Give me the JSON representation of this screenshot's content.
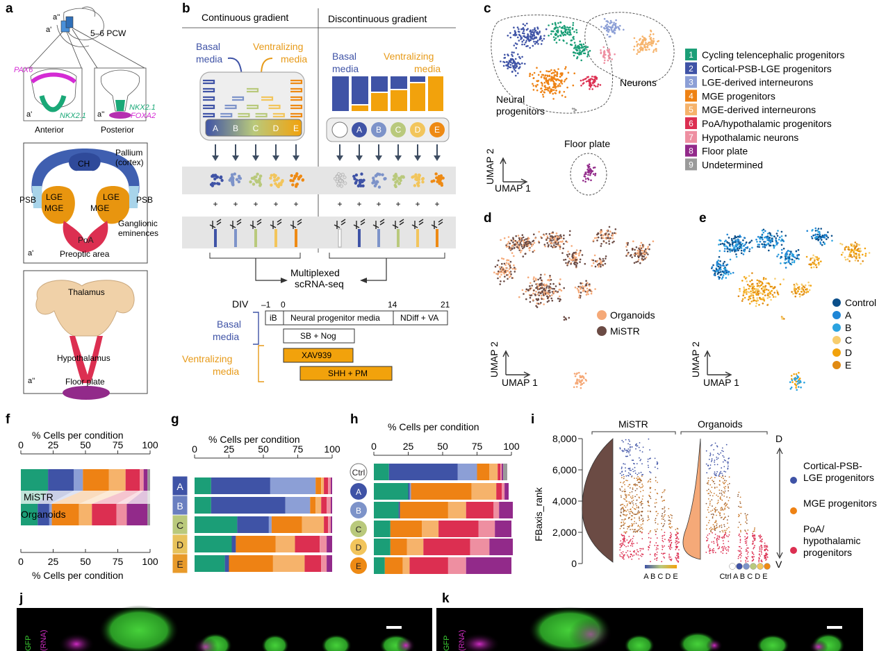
{
  "panels": {
    "a": {
      "label": "a",
      "top": {
        "stage": "5–6 PCW",
        "cut1": "a'",
        "cut2": "a''",
        "markers": [
          "PAX6",
          "NKX2.1",
          "NKX2.1",
          "FOXA2"
        ],
        "anterior": "Anterior",
        "posterior": "Posterior",
        "sub1": "a'",
        "sub2": "a''"
      },
      "mid": {
        "CH": "CH",
        "pallium": "Pallium",
        "cortex": "(cortex)",
        "LGE": "LGE",
        "MGE": "MGE",
        "PSB": "PSB",
        "PoA": "PoA",
        "ganglionic": "Ganglionic",
        "eminences": "eminences",
        "preoptic": "Preoptic area",
        "sub": "a'"
      },
      "bot": {
        "thalamus": "Thalamus",
        "hypothalamus": "Hypothalamus",
        "floorplate": "Floor plate",
        "sub": "a''"
      }
    },
    "b": {
      "label": "b",
      "continuous": "Continuous gradient",
      "discontinuous": "Discontinuous gradient",
      "basal": [
        "Basal",
        "media"
      ],
      "ventral": [
        "Ventralizing",
        "media"
      ],
      "wells": [
        "A",
        "B",
        "C",
        "D",
        "E"
      ],
      "plus": "+",
      "multiplexed": [
        "Multiplexed",
        "scRNA-seq"
      ],
      "timeline": {
        "div": "DIV",
        "ticks": [
          "–1",
          "0",
          "14",
          "21"
        ],
        "segments": [
          "iB",
          "Neural progenitor media",
          "NDiff + VA"
        ],
        "basal": [
          "Basal",
          "media"
        ],
        "ventral": [
          "Ventralizing",
          "media"
        ],
        "bars": [
          "SB + Nog",
          "XAV939",
          "SHH + PM"
        ]
      }
    },
    "c": {
      "label": "c",
      "neurons": "Neurons",
      "neural": [
        "Neural",
        "progenitors"
      ],
      "floorplate": "Floor plate",
      "umap1": "UMAP 1",
      "umap2": "UMAP 2",
      "legend": [
        {
          "n": "1",
          "name": "Cycling telencephalic progenitors",
          "color": "#1b9e77"
        },
        {
          "n": "2",
          "name": "Cortical-PSB-LGE progenitors",
          "color": "#3f53a6"
        },
        {
          "n": "3",
          "name": "LGE-derived interneurons",
          "color": "#8c9fd6"
        },
        {
          "n": "4",
          "name": "MGE progenitors",
          "color": "#ee8214"
        },
        {
          "n": "5",
          "name": "MGE-derived interneurons",
          "color": "#f6b36b"
        },
        {
          "n": "6",
          "name": "PoA/hypothalamic progenitors",
          "color": "#dc2f51"
        },
        {
          "n": "7",
          "name": "Hypothalamic neurons",
          "color": "#ee8fa1"
        },
        {
          "n": "8",
          "name": "Floor plate",
          "color": "#922a8a"
        },
        {
          "n": "9",
          "name": "Undetermined",
          "color": "#9a9a9a"
        }
      ]
    },
    "d": {
      "label": "d",
      "legend": [
        {
          "name": "Organoids",
          "color": "#f5a978"
        },
        {
          "name": "MiSTR",
          "color": "#6b4b44"
        }
      ],
      "umap1": "UMAP 1",
      "umap2": "UMAP 2"
    },
    "e": {
      "label": "e",
      "legend": [
        {
          "name": "Control",
          "color": "#0b4f8a"
        },
        {
          "name": "A",
          "color": "#1f86d6"
        },
        {
          "name": "B",
          "color": "#2ba3e0"
        },
        {
          "name": "C",
          "color": "#f7cd6e"
        },
        {
          "name": "D",
          "color": "#f2a20c"
        },
        {
          "name": "E",
          "color": "#e08a12"
        }
      ],
      "umap1": "UMAP 1",
      "umap2": "UMAP 2"
    },
    "f": {
      "label": "f",
      "title": "% Cells per condition",
      "bottom_title": "% Cells per condition",
      "rows": [
        "MiSTR",
        "Organoids"
      ]
    },
    "g": {
      "label": "g",
      "title": "% Cells per condition",
      "rows": [
        "A",
        "B",
        "C",
        "D",
        "E"
      ]
    },
    "h": {
      "label": "h",
      "title": "% Cells per condition",
      "rows": [
        "Ctrl",
        "A",
        "B",
        "C",
        "D",
        "E"
      ]
    },
    "i": {
      "label": "i",
      "groups": [
        "MiSTR",
        "Organoids"
      ],
      "ylabel": "FBaxis_rank",
      "d": "D",
      "v": "V",
      "xcats1": "A B C D E",
      "xcats2": "Ctrl A B C D E",
      "legend": [
        {
          "lines": [
            "Cortical-PSB-",
            "LGE progenitors"
          ],
          "color": "#3f53a6"
        },
        {
          "lines": [
            "MGE progenitors"
          ],
          "color": "#ee8214"
        },
        {
          "lines": [
            "PoA/",
            "hypothalamic",
            "progenitors"
          ],
          "color": "#dc2f51"
        }
      ]
    },
    "j": {
      "label": "j",
      "side": [
        "GFP",
        "(RNA)"
      ]
    },
    "k": {
      "label": "k",
      "side": [
        "GFP",
        "(RNA)"
      ]
    }
  },
  "chart_data": [
    {
      "type": "bar",
      "title": "% Cells per condition",
      "categories": [
        "MiSTR",
        "Organoids"
      ],
      "xlim": [
        0,
        100
      ],
      "ticks": [
        "0",
        "25",
        "50",
        "75",
        "100"
      ],
      "series": [
        {
          "name": "Cycling telencephalic progenitors",
          "values": [
            21,
            13
          ]
        },
        {
          "name": "Cortical-PSB-LGE progenitors",
          "values": [
            20,
            9
          ]
        },
        {
          "name": "LGE-derived interneurons",
          "values": [
            7,
            2
          ]
        },
        {
          "name": "MGE progenitors",
          "values": [
            20,
            21
          ]
        },
        {
          "name": "MGE-derived interneurons",
          "values": [
            13,
            10
          ]
        },
        {
          "name": "PoA/hypothalamic progenitors",
          "values": [
            11,
            19
          ]
        },
        {
          "name": "Hypothalamic neurons",
          "values": [
            3,
            8
          ]
        },
        {
          "name": "Floor plate",
          "values": [
            3,
            16
          ]
        },
        {
          "name": "Undetermined",
          "values": [
            2,
            2
          ]
        }
      ]
    },
    {
      "type": "bar",
      "title": "% Cells per condition",
      "categories": [
        "A",
        "B",
        "C",
        "D",
        "E"
      ],
      "xlim": [
        0,
        100
      ],
      "ticks": [
        "0",
        "25",
        "50",
        "75",
        "100"
      ],
      "series": [
        {
          "name": "Cycling telencephalic progenitors",
          "values": [
            12,
            12,
            31,
            27,
            22
          ]
        },
        {
          "name": "Cortical-PSB-LGE progenitors",
          "values": [
            43,
            54,
            23,
            3,
            3
          ]
        },
        {
          "name": "LGE-derived interneurons",
          "values": [
            33,
            18,
            2,
            0,
            0
          ]
        },
        {
          "name": "MGE progenitors",
          "values": [
            4,
            4,
            22,
            29,
            32
          ]
        },
        {
          "name": "MGE-derived interneurons",
          "values": [
            2,
            4,
            16,
            14,
            23
          ]
        },
        {
          "name": "PoA/hypothalamic progenitors",
          "values": [
            3,
            4,
            3,
            18,
            12
          ]
        },
        {
          "name": "Hypothalamic neurons",
          "values": [
            2,
            3,
            2,
            5,
            4
          ]
        },
        {
          "name": "Floor plate",
          "values": [
            1,
            1,
            1,
            4,
            4
          ]
        }
      ]
    },
    {
      "type": "bar",
      "title": "% Cells per condition",
      "categories": [
        "Ctrl",
        "A",
        "B",
        "C",
        "D",
        "E"
      ],
      "xlim": [
        0,
        100
      ],
      "ticks": [
        "0",
        "25",
        "50",
        "75",
        "100"
      ],
      "series": [
        {
          "name": "Cycling telencephalic progenitors",
          "values": [
            11,
            25,
            18,
            12,
            12,
            8
          ]
        },
        {
          "name": "Cortical-PSB-LGE progenitors",
          "values": [
            50,
            1,
            1,
            0,
            0,
            0
          ]
        },
        {
          "name": "LGE-derived interneurons",
          "values": [
            14,
            1,
            0,
            0,
            0,
            0
          ]
        },
        {
          "name": "MGE progenitors",
          "values": [
            9,
            44,
            35,
            23,
            12,
            13
          ]
        },
        {
          "name": "MGE-derived interneurons",
          "values": [
            6,
            18,
            13,
            12,
            12,
            5
          ]
        },
        {
          "name": "PoA/hypothalamic progenitors",
          "values": [
            2,
            4,
            20,
            29,
            34,
            28
          ]
        },
        {
          "name": "Hypothalamic neurons",
          "values": [
            1,
            2,
            4,
            12,
            14,
            13
          ]
        },
        {
          "name": "Floor plate",
          "values": [
            1,
            3,
            10,
            12,
            17,
            33
          ]
        },
        {
          "name": "Undetermined",
          "values": [
            3,
            0,
            0,
            0,
            0,
            0
          ]
        }
      ]
    },
    {
      "type": "scatter",
      "ylabel": "FBaxis_rank",
      "ylim": [
        0,
        8000
      ],
      "yticks": [
        "0",
        "2,000",
        "4,000",
        "6,000",
        "8,000"
      ],
      "groups": [
        "MiSTR",
        "Organoids"
      ]
    }
  ]
}
